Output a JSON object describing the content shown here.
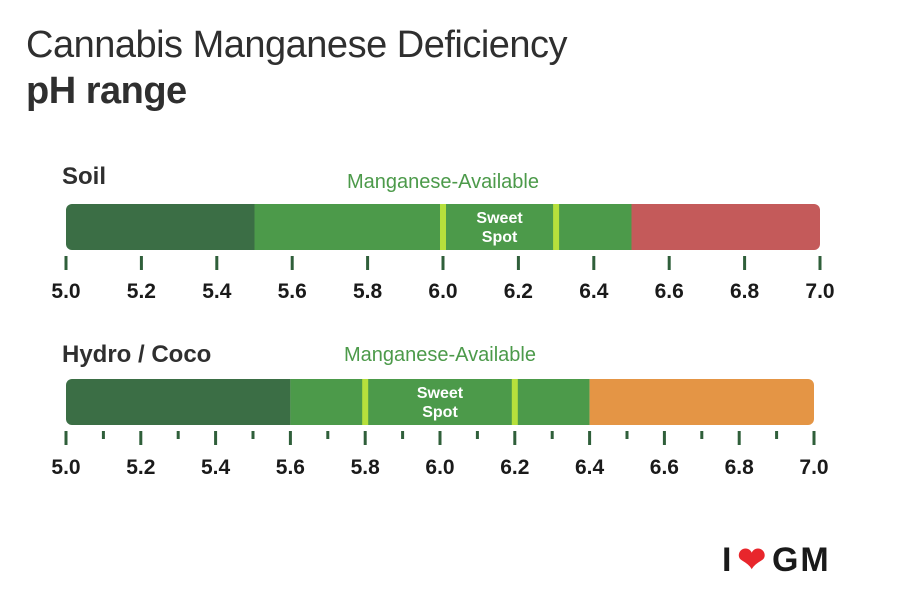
{
  "title": {
    "line1": "Cannabis Manganese Deficiency",
    "line2": "pH range"
  },
  "chart_data": [
    {
      "type": "bar",
      "name": "Soil",
      "label": "Soil",
      "available_label": "Manganese-Available",
      "sweet_spot_label": [
        "Sweet",
        "Spot"
      ],
      "x_range": [
        5.0,
        7.0
      ],
      "ticks": [
        5.0,
        5.2,
        5.4,
        5.6,
        5.8,
        6.0,
        6.2,
        6.4,
        6.6,
        6.8,
        7.0
      ],
      "minor_ticks": [],
      "tick_labels": [
        "5.0",
        "5.2",
        "5.4",
        "5.6",
        "5.8",
        "6.0",
        "6.2",
        "6.4",
        "6.6",
        "6.8",
        "7.0"
      ],
      "segments": [
        {
          "from": 5.0,
          "to": 5.5,
          "color": "#3b6e45"
        },
        {
          "from": 5.5,
          "to": 6.5,
          "color": "#4c9a4a"
        },
        {
          "from": 6.5,
          "to": 7.0,
          "color": "#c45a5a"
        }
      ],
      "available_range": [
        5.5,
        6.5
      ],
      "sweet_spot": [
        6.0,
        6.3
      ],
      "sweet_spot_line_color": "#b6e03c"
    },
    {
      "type": "bar",
      "name": "Hydro / Coco",
      "label": "Hydro / Coco",
      "available_label": "Manganese-Available",
      "sweet_spot_label": [
        "Sweet",
        "Spot"
      ],
      "x_range": [
        5.0,
        7.0
      ],
      "ticks": [
        5.0,
        5.2,
        5.4,
        5.6,
        5.8,
        6.0,
        6.2,
        6.4,
        6.6,
        6.8,
        7.0
      ],
      "minor_ticks": [
        5.1,
        5.3,
        5.5,
        5.7,
        5.9,
        6.1,
        6.3,
        6.5,
        6.7,
        6.9
      ],
      "tick_labels": [
        "5.0",
        "5.2",
        "5.4",
        "5.6",
        "5.8",
        "6.0",
        "6.2",
        "6.4",
        "6.6",
        "6.8",
        "7.0"
      ],
      "segments": [
        {
          "from": 5.0,
          "to": 5.6,
          "color": "#3b6e45"
        },
        {
          "from": 5.6,
          "to": 6.4,
          "color": "#4c9a4a"
        },
        {
          "from": 6.4,
          "to": 7.0,
          "color": "#e49545"
        }
      ],
      "available_range": [
        5.6,
        6.4
      ],
      "sweet_spot": [
        5.8,
        6.2
      ],
      "sweet_spot_line_color": "#b6e03c"
    }
  ],
  "colors": {
    "label_text": "#2f2f2f",
    "available_text": "#4c9a4a",
    "tick": "#2f5f3a",
    "tick_label": "#1a1a1a",
    "sweet_spot_text": "#ffffff"
  },
  "logo": {
    "left": "I",
    "heart_icon": "heart-icon",
    "right": "GM"
  }
}
